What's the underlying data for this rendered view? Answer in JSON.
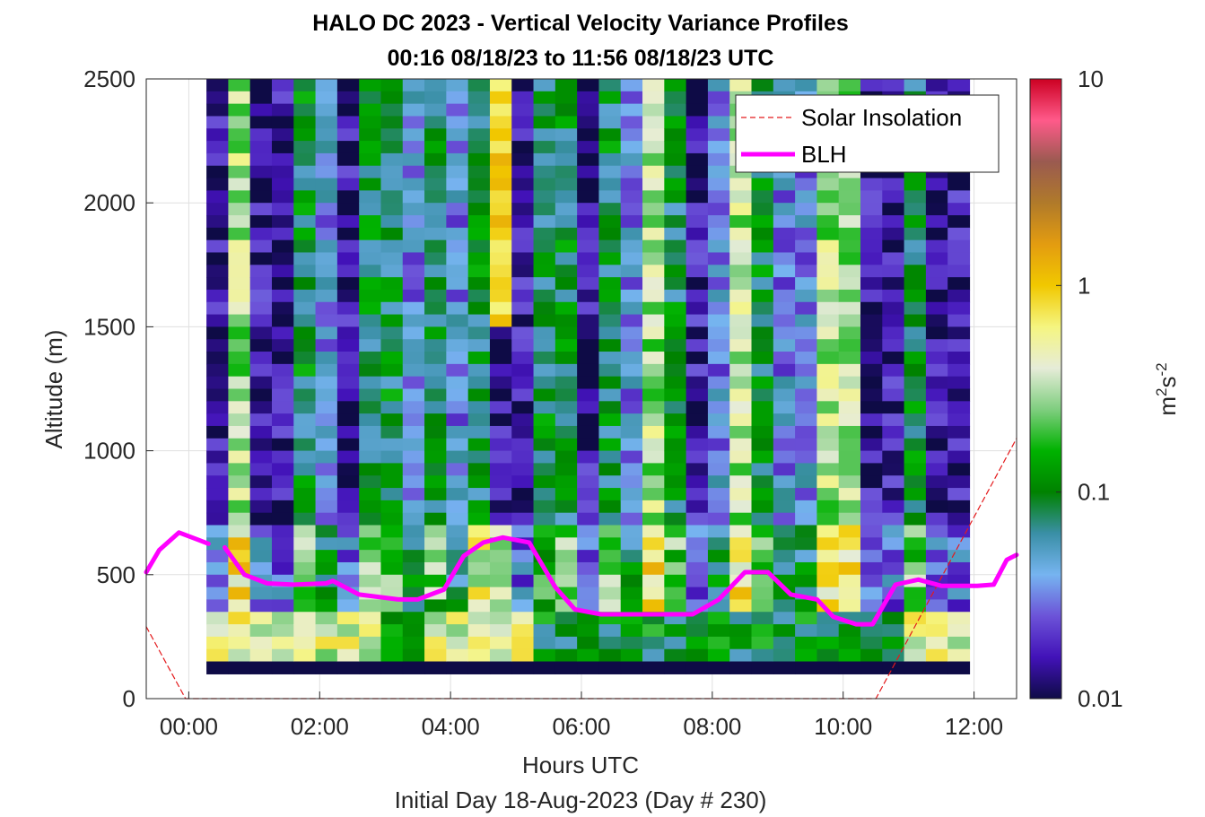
{
  "chart_data": {
    "type": "heatmap",
    "title": "HALO DC 2023 - Vertical Velocity Variance Profiles",
    "subtitle": "00:16 08/18/23 to 11:56 08/18/23  UTC",
    "xlabel": "Hours UTC",
    "x_sublabel": "Initial Day 18-Aug-2023 (Day # 230)",
    "ylabel": "Altitude (m)",
    "colorbar_label_base": "m",
    "colorbar_label_sup1": "2",
    "colorbar_label_mid": "s",
    "colorbar_label_sup2": "-2",
    "x_range_hours": [
      -0.65,
      12.65
    ],
    "y_range_m": [
      0,
      2500
    ],
    "x_ticks": [
      {
        "v": 0,
        "label": "00:00"
      },
      {
        "v": 2,
        "label": "02:00"
      },
      {
        "v": 4,
        "label": "04:00"
      },
      {
        "v": 6,
        "label": "06:00"
      },
      {
        "v": 8,
        "label": "08:00"
      },
      {
        "v": 10,
        "label": "10:00"
      },
      {
        "v": 12,
        "label": "12:00"
      }
    ],
    "y_ticks": [
      {
        "v": 0,
        "label": "0"
      },
      {
        "v": 500,
        "label": "500"
      },
      {
        "v": 1000,
        "label": "1000"
      },
      {
        "v": 1500,
        "label": "1500"
      },
      {
        "v": 2000,
        "label": "2000"
      },
      {
        "v": 2500,
        "label": "2500"
      }
    ],
    "colorbar": {
      "scale": "log",
      "range": [
        0.01,
        10
      ],
      "ticks": [
        {
          "v": 0.01,
          "label": "0.01"
        },
        {
          "v": 0.1,
          "label": "0.1"
        },
        {
          "v": 1,
          "label": "1"
        },
        {
          "v": 10,
          "label": "10"
        }
      ]
    },
    "grid": true,
    "legend_position": "top-right",
    "heatmap": {
      "hour_start": 0.27,
      "hour_end": 11.93,
      "columns": 35,
      "altitude_start": 100,
      "altitude_end": 2500,
      "rows": 48,
      "lowest_row_value": 0.01,
      "approx_log10_profiles": [
        {
          "label": "very low (~0.01-0.02)",
          "log10": -1.9
        },
        {
          "label": "low (~0.03)",
          "log10": -1.55
        },
        {
          "label": "moderate (~0.1)",
          "log10": -1.0
        },
        {
          "label": "high (~0.3-0.6)",
          "log10": -0.35
        }
      ]
    },
    "series": [
      {
        "name": "Solar Insolation",
        "style": "dashed",
        "color": "#e41a1c",
        "points": [
          [
            -0.65,
            290
          ],
          [
            -0.05,
            0
          ],
          [
            10.5,
            0
          ],
          [
            12.65,
            1050
          ]
        ]
      },
      {
        "name": "BLH",
        "style": "solid",
        "color": "#ff00ff",
        "segments": [
          [
            [
              -0.65,
              510
            ],
            [
              -0.45,
              600
            ],
            [
              -0.15,
              670
            ],
            [
              0.15,
              640
            ],
            [
              0.3,
              625
            ]
          ],
          [
            [
              0.55,
              610
            ],
            [
              0.85,
              500
            ],
            [
              1.2,
              465
            ],
            [
              1.6,
              460
            ],
            [
              2.1,
              465
            ],
            [
              2.2,
              475
            ],
            [
              2.6,
              420
            ],
            [
              3.2,
              400
            ],
            [
              3.5,
              400
            ],
            [
              3.9,
              440
            ],
            [
              4.2,
              575
            ],
            [
              4.5,
              630
            ],
            [
              4.8,
              650
            ],
            [
              5.2,
              630
            ],
            [
              5.6,
              450
            ],
            [
              5.9,
              360
            ],
            [
              6.3,
              340
            ],
            [
              7.0,
              340
            ],
            [
              7.7,
              340
            ],
            [
              8.1,
              400
            ],
            [
              8.5,
              510
            ],
            [
              8.85,
              510
            ],
            [
              9.2,
              420
            ],
            [
              9.6,
              400
            ],
            [
              9.85,
              330
            ],
            [
              10.2,
              300
            ],
            [
              10.45,
              300
            ],
            [
              10.8,
              460
            ],
            [
              11.15,
              480
            ],
            [
              11.5,
              455
            ],
            [
              12.05,
              455
            ],
            [
              12.3,
              460
            ],
            [
              12.5,
              560
            ],
            [
              12.65,
              580
            ]
          ]
        ]
      }
    ],
    "legend": [
      "Solar Insolation",
      "BLH"
    ],
    "colors": {
      "colormap": [
        "#0e0b46",
        "#4212b8",
        "#6c53d8",
        "#76b4f0",
        "#3a8fa6",
        "#008200",
        "#00b200",
        "#7fce7f",
        "#e6ecd8",
        "#f5f580",
        "#f1c800",
        "#e39c10",
        "#b07a2a",
        "#9a5a50",
        "#ff5a8a",
        "#cc0022"
      ],
      "solar_insolation": "#e41a1c",
      "blh": "#ff00ff"
    }
  }
}
